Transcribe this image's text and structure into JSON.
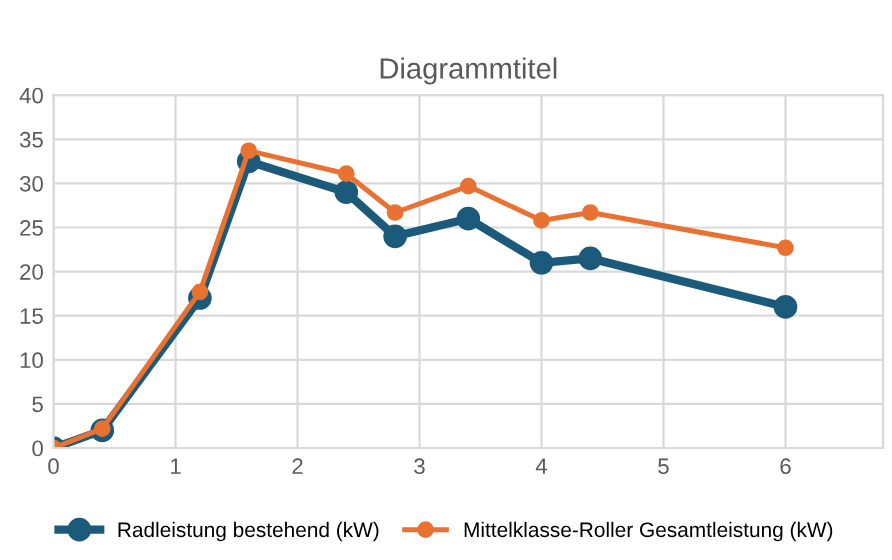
{
  "chart_data": {
    "type": "line",
    "title": "Diagrammtitel",
    "x": [
      0,
      0.4,
      1.2,
      1.6,
      2.4,
      2.8,
      3.4,
      4.0,
      4.4,
      6.0
    ],
    "series": [
      {
        "name": "Radleistung bestehend (kW)",
        "color": "#1b5a7a",
        "values": [
          0,
          2,
          17,
          32.5,
          29,
          24,
          26,
          21,
          21.5,
          16
        ]
      },
      {
        "name": "Mittelklasse-Roller Gesamtleistung (kW)",
        "color": "#e97132",
        "values": [
          0,
          2.2,
          17.7,
          33.7,
          31.1,
          26.7,
          29.7,
          25.8,
          26.7,
          22.7
        ]
      }
    ],
    "xlim": [
      0,
      6.8
    ],
    "xticks": [
      0,
      1,
      2,
      3,
      4,
      5,
      6
    ],
    "ylim": [
      0,
      40
    ],
    "yticks": [
      0,
      5,
      10,
      15,
      20,
      25,
      30,
      35,
      40
    ],
    "grid": true,
    "legend": "bottom",
    "marker": "circle",
    "line_style": "solid"
  }
}
